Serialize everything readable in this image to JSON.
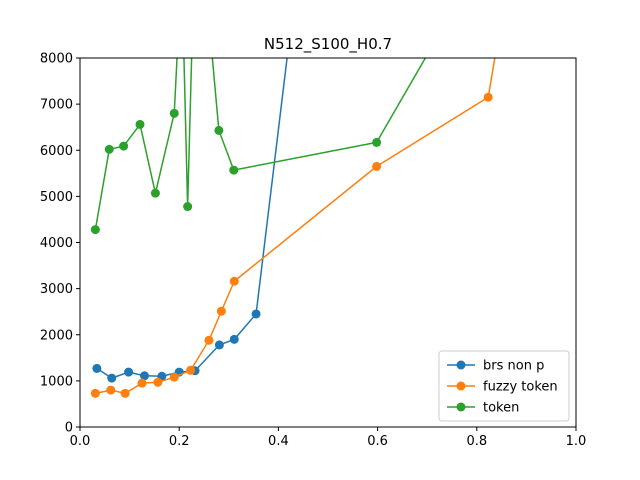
{
  "chart_data": {
    "type": "line",
    "title": "N512_S100_H0.7",
    "xlabel": "",
    "ylabel": "",
    "xlim": [
      0,
      1.0
    ],
    "ylim": [
      0,
      8000
    ],
    "x_ticks": [
      "0.0",
      "0.2",
      "0.4",
      "0.6",
      "0.8",
      "1.0"
    ],
    "y_ticks": [
      "0",
      "1000",
      "2000",
      "3000",
      "4000",
      "5000",
      "6000",
      "7000",
      "8000"
    ],
    "grid": false,
    "legend_position": "lower-right",
    "series": [
      {
        "name": "brs non p",
        "color": "#1f77b4",
        "x": [
          0.034,
          0.064,
          0.098,
          0.13,
          0.165,
          0.2,
          0.232,
          0.281,
          0.311,
          0.355,
          0.44
        ],
        "y": [
          1270,
          1060,
          1190,
          1110,
          1100,
          1190,
          1220,
          1780,
          1900,
          2450,
          10000
        ]
      },
      {
        "name": "fuzzy token",
        "color": "#ff7f0e",
        "x": [
          0.031,
          0.062,
          0.091,
          0.125,
          0.157,
          0.19,
          0.223,
          0.26,
          0.285,
          0.311,
          0.598,
          0.823,
          0.86
        ],
        "y": [
          730,
          800,
          730,
          950,
          970,
          1080,
          1230,
          1880,
          2510,
          3160,
          5650,
          7150,
          9500
        ]
      },
      {
        "name": "token",
        "color": "#2ca02c",
        "x": [
          0.031,
          0.059,
          0.088,
          0.121,
          0.152,
          0.19,
          0.205,
          0.217,
          0.23,
          0.25,
          0.28,
          0.31,
          0.598,
          0.75
        ],
        "y": [
          4280,
          6020,
          6090,
          6560,
          5070,
          6800,
          10000,
          4780,
          10000,
          10000,
          6430,
          5570,
          6170,
          9000
        ]
      }
    ]
  }
}
